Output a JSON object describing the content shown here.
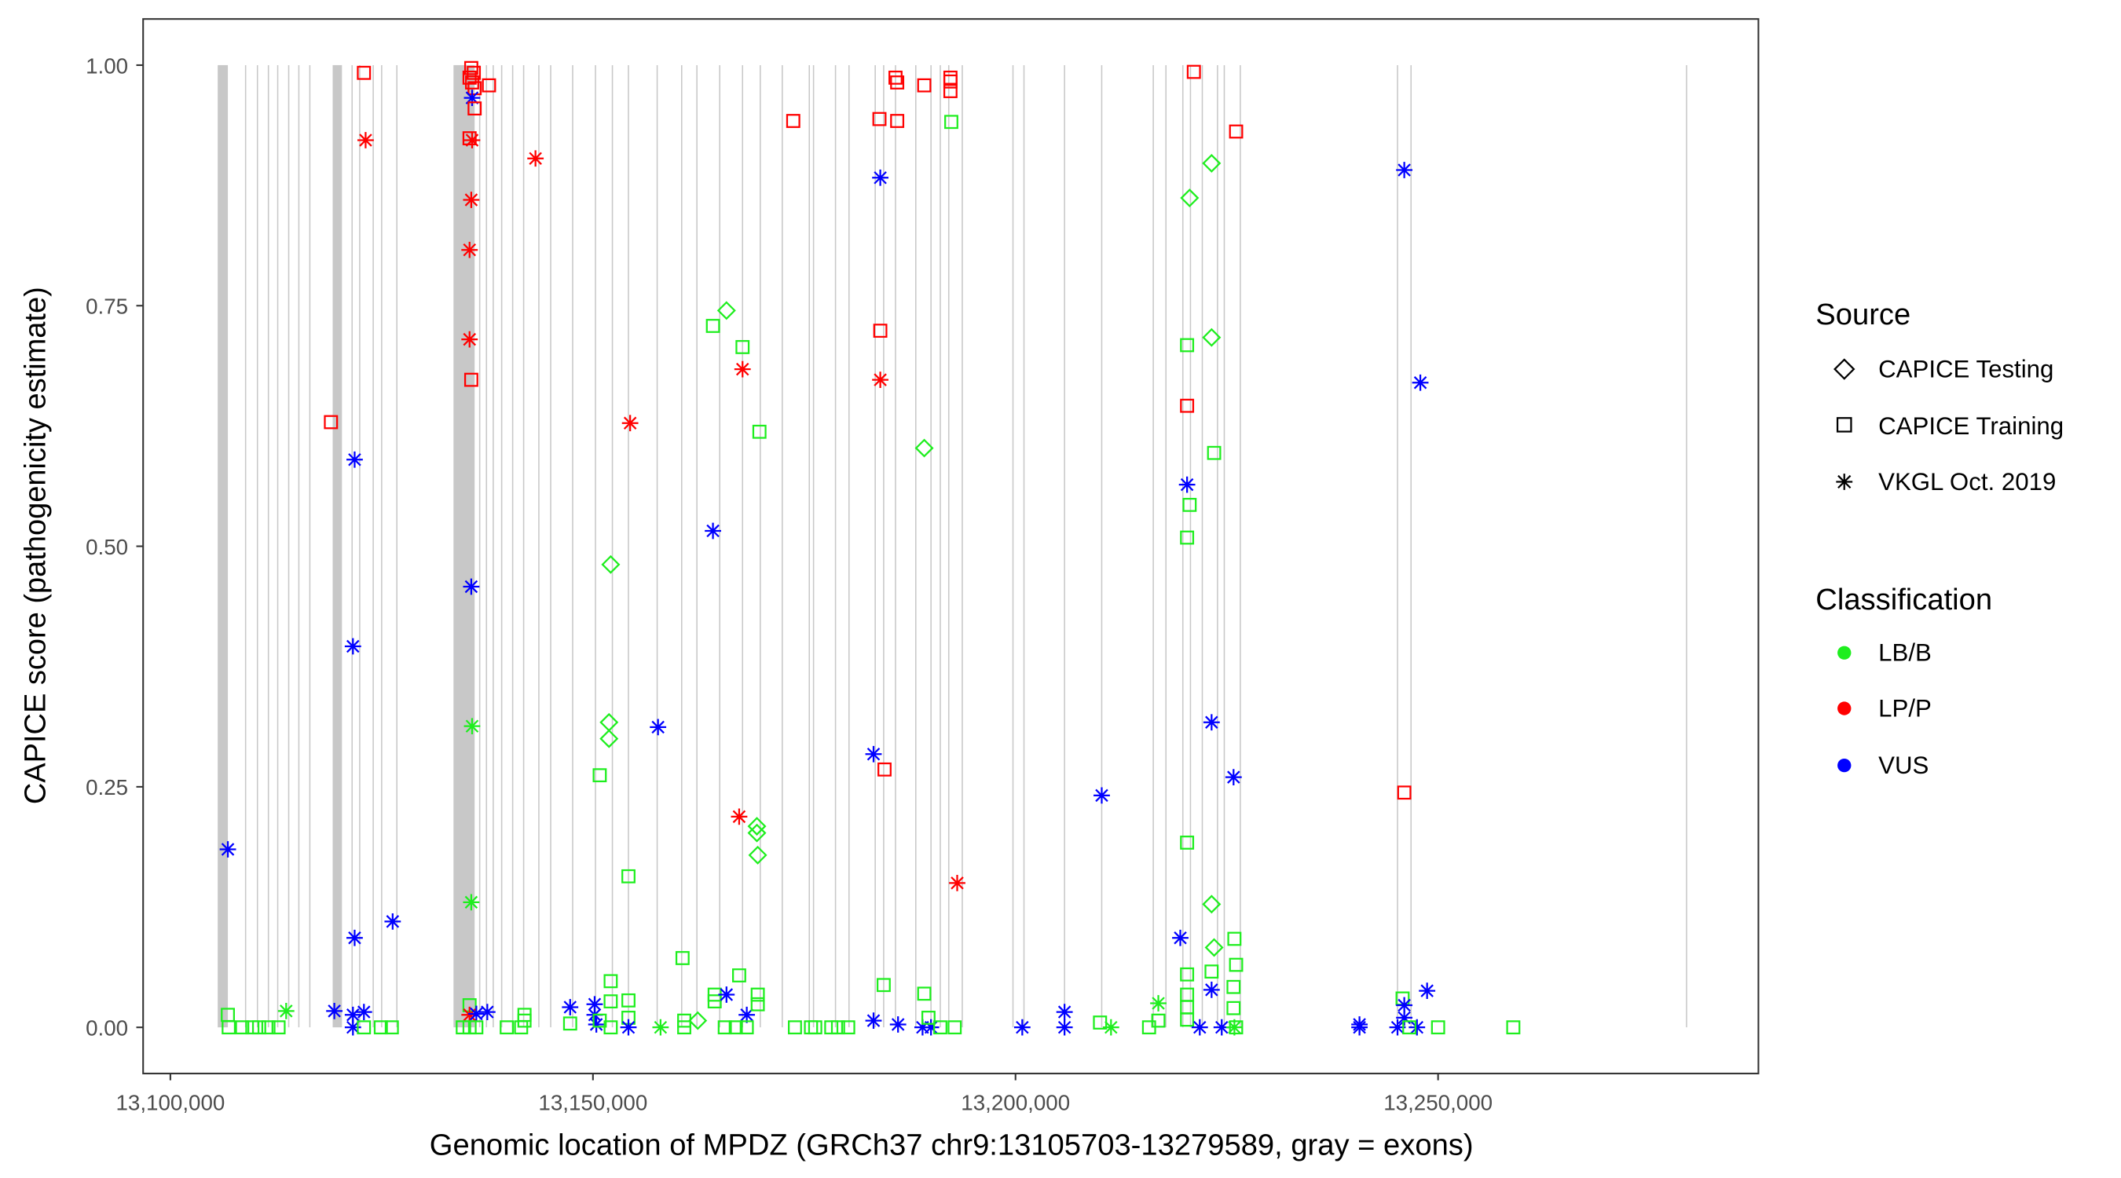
{
  "chart_data": {
    "type": "scatter",
    "title": "",
    "xlabel": "Genomic location of MPDZ (GRCh37 chr9:13105703-13279589, gray = exons)",
    "ylabel": "CAPICE score (pathogenicity estimate)",
    "xlim": [
      13096800,
      13288000
    ],
    "ylim": [
      -0.047,
      1.05
    ],
    "x_ticks": [
      13100000,
      13150000,
      13200000,
      13250000
    ],
    "x_tick_labels": [
      "13,100,000",
      "13,150,000",
      "13,200,000",
      "13,250,000"
    ],
    "y_ticks": [
      0,
      0.25,
      0.5,
      0.75,
      1.0
    ],
    "y_tick_labels": [
      "0.00",
      "0.25",
      "0.50",
      "0.75",
      "1.00"
    ],
    "grid": false,
    "legend_position": "right",
    "legend": {
      "source": {
        "title": "Source",
        "items": [
          {
            "label": "CAPICE Testing",
            "shape": "diamond"
          },
          {
            "label": "CAPICE Training",
            "shape": "square"
          },
          {
            "label": "VKGL Oct. 2019",
            "shape": "asterisk"
          }
        ]
      },
      "classification": {
        "title": "Classification",
        "items": [
          {
            "label": "LB/B",
            "color": "#1EEE1E"
          },
          {
            "label": "LP/P",
            "color": "#FF0000"
          },
          {
            "label": "VUS",
            "color": "#0000FF"
          }
        ]
      }
    },
    "exon_color": "#C8C8C8",
    "exons_wide": [
      [
        13105600,
        13106800
      ],
      [
        13119200,
        13120300
      ],
      [
        13133500,
        13136000
      ]
    ],
    "exons": [
      13108900,
      13110300,
      13111600,
      13112700,
      13114000,
      13115200,
      13116500,
      13121500,
      13122400,
      13124000,
      13125000,
      13126800,
      13136600,
      13137400,
      13138200,
      13139200,
      13140500,
      13141800,
      13143600,
      13145000,
      13147600,
      13150300,
      13152300,
      13154200,
      13157600,
      13160500,
      13162300,
      13165000,
      13167700,
      13169800,
      13172400,
      13175600,
      13176100,
      13178700,
      13180300,
      13183400,
      13184400,
      13185800,
      13188200,
      13190000,
      13191100,
      13192100,
      13193700,
      13199700,
      13201000,
      13205800,
      13210200,
      13216300,
      13217800,
      13219800,
      13220700,
      13222100,
      13223900,
      13224700,
      13226600,
      13245200,
      13246800,
      13279400
    ],
    "points_fields": [
      "position",
      "score",
      "source_index",
      "classification_index"
    ],
    "points": [
      [
        13106800,
        0.185,
        2,
        2
      ],
      [
        13106800,
        0.013,
        1,
        0
      ],
      [
        13106900,
        0,
        1,
        0
      ],
      [
        13108500,
        0,
        1,
        0
      ],
      [
        13109700,
        0,
        1,
        0
      ],
      [
        13110500,
        0,
        1,
        0
      ],
      [
        13111600,
        0,
        1,
        0
      ],
      [
        13112800,
        0,
        1,
        0
      ],
      [
        13113700,
        0.017,
        2,
        0
      ],
      [
        13119400,
        0.017,
        2,
        2
      ],
      [
        13119000,
        0.629,
        1,
        1
      ],
      [
        13122900,
        0.992,
        1,
        1
      ],
      [
        13123100,
        0.922,
        2,
        1
      ],
      [
        13121800,
        0.59,
        2,
        2
      ],
      [
        13121600,
        0.396,
        2,
        2
      ],
      [
        13121800,
        0.093,
        2,
        2
      ],
      [
        13126300,
        0.11,
        2,
        2
      ],
      [
        13121600,
        0.013,
        2,
        2
      ],
      [
        13122900,
        0.016,
        2,
        2
      ],
      [
        13121600,
        0,
        2,
        2
      ],
      [
        13122900,
        0,
        1,
        0
      ],
      [
        13124900,
        0,
        1,
        0
      ],
      [
        13126200,
        0,
        1,
        0
      ],
      [
        13135600,
        0.997,
        1,
        1
      ],
      [
        13135900,
        0.992,
        1,
        1
      ],
      [
        13135400,
        0.987,
        1,
        1
      ],
      [
        13135700,
        0.982,
        1,
        1
      ],
      [
        13136000,
        0.976,
        1,
        1
      ],
      [
        13137700,
        0.979,
        1,
        1
      ],
      [
        13135700,
        0.966,
        2,
        2
      ],
      [
        13136000,
        0.955,
        1,
        1
      ],
      [
        13135400,
        0.924,
        1,
        1
      ],
      [
        13135700,
        0.922,
        2,
        1
      ],
      [
        13135600,
        0.86,
        2,
        1
      ],
      [
        13135400,
        0.808,
        2,
        1
      ],
      [
        13135400,
        0.715,
        2,
        1
      ],
      [
        13135600,
        0.673,
        1,
        1
      ],
      [
        13135600,
        0.458,
        2,
        2
      ],
      [
        13135700,
        0.313,
        2,
        0
      ],
      [
        13135600,
        0.13,
        2,
        0
      ],
      [
        13135400,
        0.023,
        1,
        0
      ],
      [
        13135400,
        0.013,
        2,
        1
      ],
      [
        13136200,
        0.014,
        2,
        2
      ],
      [
        13137500,
        0.016,
        2,
        2
      ],
      [
        13134600,
        0,
        1,
        0
      ],
      [
        13135400,
        0,
        1,
        0
      ],
      [
        13136200,
        0,
        1,
        0
      ],
      [
        13143200,
        0.903,
        2,
        1
      ],
      [
        13139800,
        0,
        1,
        0
      ],
      [
        13141500,
        0,
        1,
        0
      ],
      [
        13141900,
        0.013,
        1,
        0
      ],
      [
        13141900,
        0.007,
        1,
        0
      ],
      [
        13147300,
        0.021,
        2,
        2
      ],
      [
        13147300,
        0.004,
        1,
        0
      ],
      [
        13150200,
        0.024,
        2,
        2
      ],
      [
        13150200,
        0.013,
        2,
        2
      ],
      [
        13150400,
        0.003,
        2,
        2
      ],
      [
        13150800,
        0.262,
        1,
        0
      ],
      [
        13152100,
        0.481,
        0,
        0
      ],
      [
        13151900,
        0.317,
        0,
        0
      ],
      [
        13151900,
        0.3,
        0,
        0
      ],
      [
        13152100,
        0.048,
        1,
        0
      ],
      [
        13152100,
        0.027,
        1,
        0
      ],
      [
        13150800,
        0.007,
        1,
        0
      ],
      [
        13152100,
        0,
        1,
        0
      ],
      [
        13154400,
        0.628,
        2,
        1
      ],
      [
        13154200,
        0.157,
        1,
        0
      ],
      [
        13154200,
        0.028,
        1,
        0
      ],
      [
        13154200,
        0.01,
        1,
        0
      ],
      [
        13154200,
        0,
        2,
        2
      ],
      [
        13157700,
        0.312,
        2,
        2
      ],
      [
        13158000,
        0,
        2,
        0
      ],
      [
        13160600,
        0.072,
        1,
        0
      ],
      [
        13160800,
        0.007,
        1,
        0
      ],
      [
        13160800,
        0,
        1,
        0
      ],
      [
        13162400,
        0.007,
        0,
        0
      ],
      [
        13164200,
        0.516,
        2,
        2
      ],
      [
        13164200,
        0.729,
        1,
        0
      ],
      [
        13165800,
        0.745,
        0,
        0
      ],
      [
        13167700,
        0.707,
        1,
        0
      ],
      [
        13167700,
        0.684,
        2,
        1
      ],
      [
        13169700,
        0.619,
        1,
        0
      ],
      [
        13167300,
        0.219,
        2,
        1
      ],
      [
        13169400,
        0.209,
        0,
        0
      ],
      [
        13169400,
        0.202,
        0,
        0
      ],
      [
        13169500,
        0.179,
        0,
        0
      ],
      [
        13164400,
        0.027,
        1,
        0
      ],
      [
        13164400,
        0.034,
        1,
        0
      ],
      [
        13165800,
        0.034,
        2,
        2
      ],
      [
        13167300,
        0.054,
        1,
        0
      ],
      [
        13168200,
        0.013,
        2,
        2
      ],
      [
        13169500,
        0.034,
        1,
        0
      ],
      [
        13169500,
        0.024,
        1,
        0
      ],
      [
        13165600,
        0,
        1,
        0
      ],
      [
        13166900,
        0,
        1,
        0
      ],
      [
        13168200,
        0,
        1,
        0
      ],
      [
        13173700,
        0.942,
        1,
        1
      ],
      [
        13173900,
        0,
        1,
        0
      ],
      [
        13175800,
        0,
        1,
        0
      ],
      [
        13176300,
        0,
        1,
        0
      ],
      [
        13178200,
        0,
        1,
        0
      ],
      [
        13179000,
        0,
        1,
        0
      ],
      [
        13180200,
        0,
        1,
        0
      ],
      [
        13183900,
        0.944,
        1,
        1
      ],
      [
        13185800,
        0.987,
        1,
        1
      ],
      [
        13186000,
        0.982,
        1,
        1
      ],
      [
        13186000,
        0.942,
        1,
        1
      ],
      [
        13184000,
        0.883,
        2,
        2
      ],
      [
        13189200,
        0.979,
        1,
        1
      ],
      [
        13192300,
        0.987,
        1,
        1
      ],
      [
        13192300,
        0.983,
        1,
        1
      ],
      [
        13192300,
        0.973,
        1,
        1
      ],
      [
        13192400,
        0.941,
        1,
        0
      ],
      [
        13184000,
        0.724,
        1,
        1
      ],
      [
        13184000,
        0.673,
        2,
        1
      ],
      [
        13189200,
        0.602,
        0,
        0
      ],
      [
        13183200,
        0.284,
        2,
        2
      ],
      [
        13184500,
        0.268,
        1,
        1
      ],
      [
        13193100,
        0.15,
        2,
        1
      ],
      [
        13184400,
        0.044,
        1,
        0
      ],
      [
        13189200,
        0.035,
        1,
        0
      ],
      [
        13183200,
        0.007,
        2,
        2
      ],
      [
        13186100,
        0.003,
        2,
        2
      ],
      [
        13189000,
        0,
        2,
        2
      ],
      [
        13190000,
        0,
        2,
        2
      ],
      [
        13189700,
        0.01,
        1,
        0
      ],
      [
        13191100,
        0,
        1,
        0
      ],
      [
        13192800,
        0,
        1,
        0
      ],
      [
        13200800,
        0,
        2,
        2
      ],
      [
        13205800,
        0.016,
        2,
        2
      ],
      [
        13205800,
        0,
        2,
        2
      ],
      [
        13210200,
        0.241,
        2,
        2
      ],
      [
        13210000,
        0.005,
        1,
        0
      ],
      [
        13211300,
        0,
        2,
        0
      ],
      [
        13215800,
        0,
        1,
        0
      ],
      [
        13216900,
        0.007,
        1,
        0
      ],
      [
        13216900,
        0.025,
        2,
        0
      ],
      [
        13219500,
        0.093,
        2,
        2
      ],
      [
        13220300,
        0.564,
        2,
        2
      ],
      [
        13220300,
        0.709,
        1,
        0
      ],
      [
        13220300,
        0.646,
        1,
        1
      ],
      [
        13220600,
        0.543,
        1,
        0
      ],
      [
        13220300,
        0.509,
        1,
        0
      ],
      [
        13220300,
        0.192,
        1,
        0
      ],
      [
        13220300,
        0.055,
        1,
        0
      ],
      [
        13220300,
        0.034,
        1,
        0
      ],
      [
        13220300,
        0.021,
        1,
        0
      ],
      [
        13220300,
        0.008,
        1,
        0
      ],
      [
        13221100,
        0.993,
        1,
        1
      ],
      [
        13220600,
        0.862,
        0,
        0
      ],
      [
        13223200,
        0.898,
        0,
        0
      ],
      [
        13223200,
        0.717,
        0,
        0
      ],
      [
        13223500,
        0.597,
        1,
        0
      ],
      [
        13223200,
        0.317,
        2,
        2
      ],
      [
        13223200,
        0.128,
        0,
        0
      ],
      [
        13223500,
        0.083,
        0,
        0
      ],
      [
        13223200,
        0.058,
        1,
        0
      ],
      [
        13223200,
        0.039,
        2,
        2
      ],
      [
        13221800,
        0,
        2,
        2
      ],
      [
        13224400,
        0,
        2,
        2
      ],
      [
        13226100,
        0.931,
        1,
        1
      ],
      [
        13225800,
        0.26,
        2,
        2
      ],
      [
        13225900,
        0.092,
        1,
        0
      ],
      [
        13226100,
        0.065,
        1,
        0
      ],
      [
        13225800,
        0.042,
        1,
        0
      ],
      [
        13225800,
        0.02,
        1,
        0
      ],
      [
        13226100,
        0,
        1,
        0
      ],
      [
        13225900,
        0,
        2,
        0
      ],
      [
        13240700,
        0,
        2,
        2
      ],
      [
        13240700,
        0.003,
        2,
        2
      ],
      [
        13246000,
        0.891,
        2,
        2
      ],
      [
        13246000,
        0.244,
        1,
        1
      ],
      [
        13245800,
        0.03,
        1,
        0
      ],
      [
        13246000,
        0.023,
        2,
        2
      ],
      [
        13246000,
        0.01,
        2,
        2
      ],
      [
        13245200,
        0,
        2,
        2
      ],
      [
        13247500,
        0,
        2,
        2
      ],
      [
        13246600,
        0,
        1,
        0
      ],
      [
        13247900,
        0.67,
        2,
        2
      ],
      [
        13248700,
        0.038,
        2,
        2
      ],
      [
        13250000,
        0,
        1,
        0
      ],
      [
        13258900,
        0,
        1,
        0
      ]
    ]
  }
}
